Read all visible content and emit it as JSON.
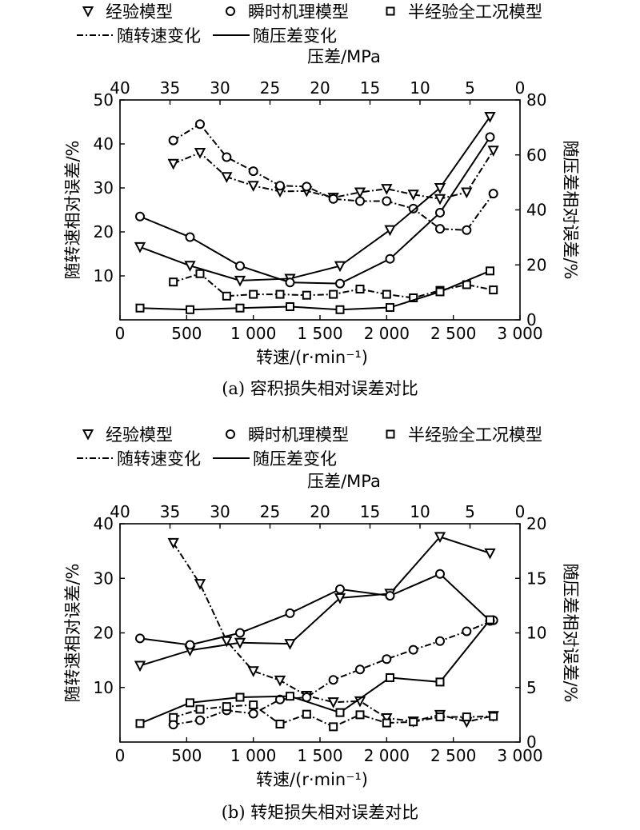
{
  "legend": {
    "empirical": "经验模型",
    "mechanism": "瞬时机理模型",
    "semi": "半经验全工况模型",
    "speed_style": "随转速变化",
    "pressure_style": "随压差变化"
  },
  "chart_data": [
    {
      "type": "line",
      "caption": "(a) 容积损失相对误差对比",
      "xlabel": "转速/(r·min⁻¹)",
      "x_ticks": [
        "0",
        "500",
        "1 000",
        "1 500",
        "2 000",
        "2 500",
        "3 000"
      ],
      "xlim": [
        0,
        3000
      ],
      "top_xlabel": "压差/MPa",
      "top_ticks": [
        "40",
        "35",
        "30",
        "25",
        "20",
        "15",
        "10",
        "5",
        "0"
      ],
      "ylabel": "随转速相对误差/%",
      "y_ticks": [
        "10",
        "20",
        "30",
        "40",
        "50"
      ],
      "ylim": [
        0,
        50
      ],
      "right_ylabel": "随压差相对误差/%",
      "right_ticks": [
        "0",
        "20",
        "40",
        "60",
        "80"
      ],
      "right_ylim": [
        0,
        80
      ],
      "series": [
        {
          "name": "经验模型",
          "marker": "triangle",
          "style": "dashdot",
          "axis": "speed",
          "x": [
            400,
            600,
            800,
            1000,
            1200,
            1400,
            1600,
            1800,
            2000,
            2200,
            2400,
            2600,
            2800
          ],
          "y": [
            35.5,
            38,
            32.5,
            30.5,
            29.2,
            29.3,
            27.8,
            29,
            29.8,
            28.5,
            27.5,
            29,
            38.5
          ]
        },
        {
          "name": "瞬时机理模型",
          "marker": "circle",
          "style": "dashdot",
          "axis": "speed",
          "x": [
            400,
            600,
            800,
            1000,
            1200,
            1400,
            1600,
            1800,
            2000,
            2200,
            2400,
            2600,
            2800
          ],
          "y": [
            40.8,
            44.5,
            37,
            33.8,
            30.5,
            30.3,
            27.5,
            27,
            27,
            25.3,
            20.7,
            20.4,
            28.7
          ]
        },
        {
          "name": "半经验全工况模型",
          "marker": "square",
          "style": "dashdot",
          "axis": "speed",
          "x": [
            400,
            600,
            800,
            1000,
            1200,
            1400,
            1600,
            1800,
            2000,
            2200,
            2400,
            2600,
            2800
          ],
          "y": [
            8.6,
            10.5,
            5.4,
            5.8,
            5.8,
            5.6,
            5.8,
            7,
            5.8,
            5,
            6.7,
            8,
            6.8
          ]
        },
        {
          "name": "经验模型",
          "marker": "triangle",
          "style": "solid",
          "axis": "pressure",
          "x": [
            38,
            33,
            28,
            23,
            18,
            13,
            8,
            3
          ],
          "y": [
            26.5,
            19.7,
            14.3,
            15,
            19.6,
            32.7,
            48,
            73.9
          ]
        },
        {
          "name": "瞬时机理模型",
          "marker": "circle",
          "style": "solid",
          "axis": "pressure",
          "x": [
            38,
            33,
            28,
            23,
            18,
            13,
            8,
            3
          ],
          "y": [
            37.6,
            30.1,
            19.6,
            13.6,
            13.2,
            22.2,
            39,
            66.5
          ]
        },
        {
          "name": "半经验全工况模型",
          "marker": "square",
          "style": "solid",
          "axis": "pressure",
          "x": [
            38,
            33,
            28,
            23,
            18,
            13,
            8,
            3
          ],
          "y": [
            4.3,
            3.7,
            4.3,
            4.8,
            3.7,
            4.5,
            10.2,
            17.8
          ]
        }
      ]
    },
    {
      "type": "line",
      "caption": "(b) 转矩损失相对误差对比",
      "xlabel": "转速/(r·min⁻¹)",
      "x_ticks": [
        "0",
        "500",
        "1 000",
        "1 500",
        "2 000",
        "2 500",
        "3 000"
      ],
      "xlim": [
        0,
        3000
      ],
      "top_xlabel": "压差/MPa",
      "top_ticks": [
        "40",
        "35",
        "30",
        "25",
        "20",
        "15",
        "10",
        "5",
        "0"
      ],
      "ylabel": "随转速相对误差/%",
      "y_ticks": [
        "10",
        "20",
        "30",
        "40"
      ],
      "ylim": [
        0,
        40
      ],
      "right_ylabel": "随压差相对误差/%",
      "right_ticks": [
        "0",
        "5",
        "10",
        "15",
        "20"
      ],
      "right_ylim": [
        0,
        20
      ],
      "series": [
        {
          "name": "经验模型",
          "marker": "triangle",
          "style": "dashdot",
          "axis": "speed",
          "x": [
            400,
            600,
            800,
            1000,
            1200,
            1400,
            1600,
            1800,
            2000,
            2200,
            2400,
            2600,
            2800
          ],
          "y": [
            36.5,
            29,
            18.5,
            13,
            11.3,
            8.5,
            7.3,
            7.5,
            4.4,
            3.8,
            5,
            3.7,
            4.8
          ]
        },
        {
          "name": "瞬时机理模型",
          "marker": "circle",
          "style": "dashdot",
          "axis": "speed",
          "x": [
            400,
            600,
            800,
            1000,
            1200,
            1400,
            1600,
            1800,
            2000,
            2200,
            2400,
            2600,
            2800
          ],
          "y": [
            3.2,
            4,
            5.8,
            5.2,
            7.8,
            8.2,
            11.4,
            13.3,
            15.2,
            16.9,
            18.5,
            20.3,
            22.3
          ]
        },
        {
          "name": "半经验全工况模型",
          "marker": "square",
          "style": "dashdot",
          "axis": "speed",
          "x": [
            400,
            600,
            800,
            1000,
            1200,
            1400,
            1600,
            1800,
            2000,
            2200,
            2400,
            2600,
            2800
          ],
          "y": [
            4.5,
            6,
            6.5,
            6.8,
            3.3,
            5.1,
            2.8,
            5,
            3.5,
            3.7,
            4.6,
            4.6,
            4.7
          ]
        },
        {
          "name": "经验模型",
          "marker": "triangle",
          "style": "solid",
          "axis": "pressure",
          "x": [
            38,
            33,
            28,
            23,
            18,
            13,
            8,
            3
          ],
          "y": [
            7,
            8.4,
            9.1,
            9,
            13.2,
            13.6,
            18.8,
            17.3
          ]
        },
        {
          "name": "瞬时机理模型",
          "marker": "circle",
          "style": "solid",
          "axis": "pressure",
          "x": [
            38,
            33,
            28,
            23,
            18,
            13,
            8,
            3
          ],
          "y": [
            9.5,
            8.9,
            10,
            11.8,
            14,
            13.4,
            15.4,
            11.1
          ]
        },
        {
          "name": "半经验全工况模型",
          "marker": "square",
          "style": "solid",
          "axis": "pressure",
          "x": [
            38,
            33,
            28,
            23,
            18,
            13,
            8,
            3
          ],
          "y": [
            1.7,
            3.6,
            4.1,
            4.2,
            2.7,
            5.9,
            5.5,
            11.2
          ]
        }
      ]
    }
  ]
}
